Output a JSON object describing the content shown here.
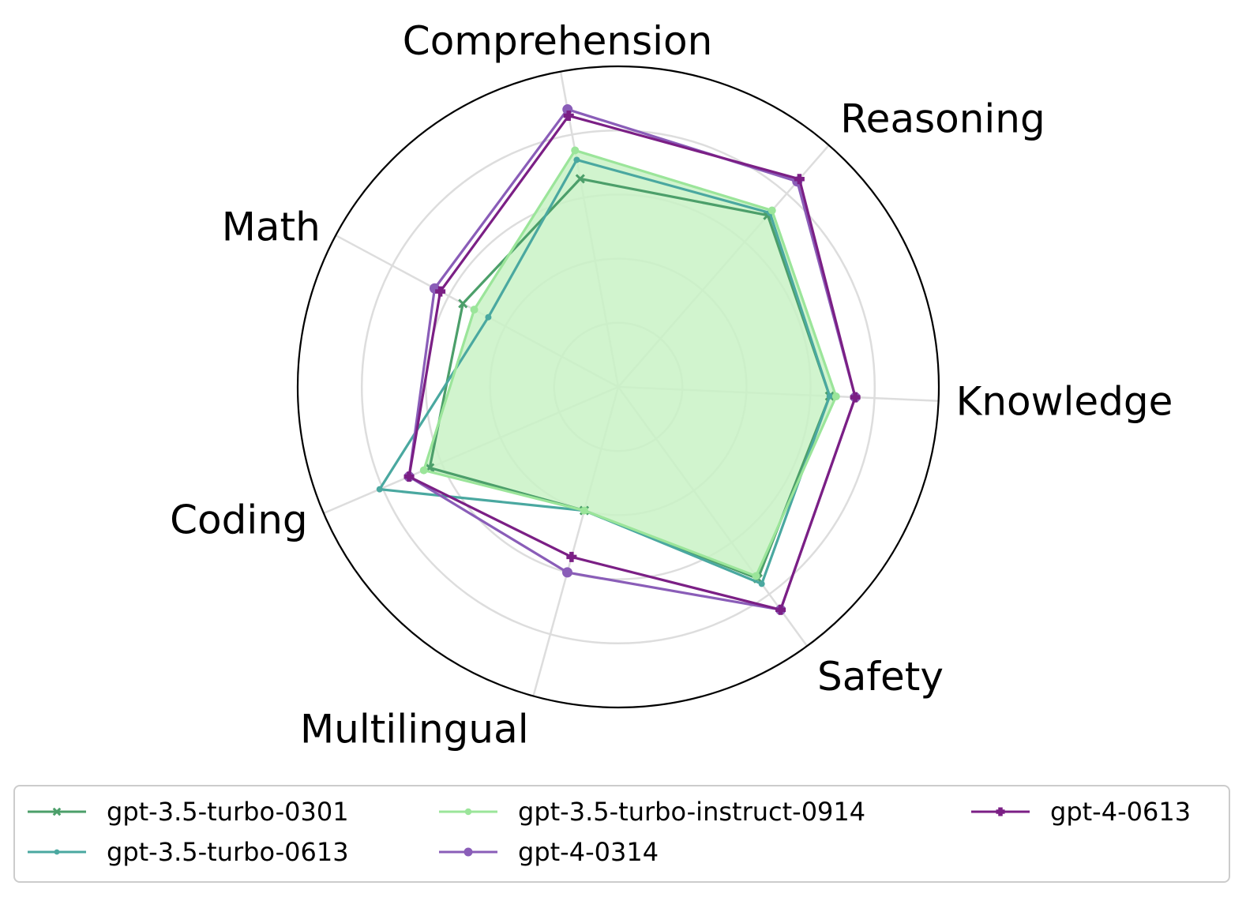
{
  "chart_data": {
    "type": "radar",
    "axes": [
      "Knowledge",
      "Reasoning",
      "Comprehension",
      "Math",
      "Coding",
      "Multilingual",
      "Safety"
    ],
    "rlim": [
      0,
      1
    ],
    "rings": [
      0.2,
      0.4,
      0.6,
      0.8,
      1.0
    ],
    "grid": true,
    "legend_position": "bottom",
    "series": [
      {
        "name": "gpt-3.5-turbo-0301",
        "color": "#4c9f6a",
        "marker": "x",
        "values": [
          0.66,
          0.71,
          0.66,
          0.55,
          0.64,
          0.4,
          0.74
        ]
      },
      {
        "name": "gpt-3.5-turbo-0613",
        "color": "#4aa8a0",
        "marker": "small-dot",
        "values": [
          0.66,
          0.72,
          0.72,
          0.46,
          0.81,
          0.4,
          0.76
        ]
      },
      {
        "name": "gpt-3.5-turbo-instruct-0914",
        "color": "#9be59a",
        "marker": "dot",
        "fill": "#c9f2c5",
        "values": [
          0.68,
          0.73,
          0.75,
          0.51,
          0.66,
          0.4,
          0.73
        ]
      },
      {
        "name": "gpt-4-0314",
        "color": "#8a5db8",
        "marker": "circle",
        "values": [
          0.74,
          0.85,
          0.88,
          0.65,
          0.71,
          0.6,
          0.86
        ]
      },
      {
        "name": "gpt-4-0613",
        "color": "#7b1f85",
        "marker": "plus",
        "values": [
          0.74,
          0.86,
          0.86,
          0.63,
          0.71,
          0.55,
          0.86
        ]
      }
    ]
  }
}
